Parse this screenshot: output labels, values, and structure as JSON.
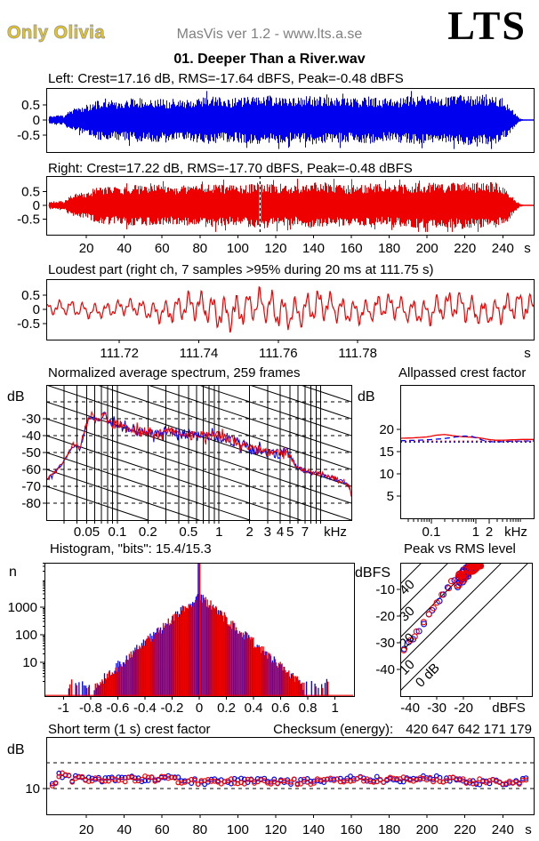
{
  "header": {
    "logo_left": "Only Olivia",
    "app_version": "MasVis ver 1.2 - www.lts.a.se",
    "logo_right": "LTS"
  },
  "title": "01. Deeper Than a River.wav",
  "colors": {
    "left_channel": "#0000EE",
    "right_channel": "#EE0000",
    "grid": "#000000",
    "gray_text": "#808080",
    "logo_gold": "#EDC80A"
  },
  "footer": {
    "checksum_label": "Checksum (energy):",
    "checksum_value": "420 647 642 171 179"
  },
  "chart_data": [
    {
      "id": "left-waveform",
      "type": "area",
      "channel": "left",
      "title": "Left: Crest=17.16 dB, RMS=-17.64 dBFS, Peak=-0.48 dBFS",
      "crest_db": 17.16,
      "rms_dbfs": -17.64,
      "peak_dbfs": -0.48,
      "ylim": [
        -1.05,
        1.05
      ],
      "yticks": [
        0.5,
        0,
        -0.5
      ],
      "xlim": [
        -1.2,
        256.3
      ],
      "grid": false,
      "envelope": [
        [
          0,
          0.13
        ],
        [
          4,
          0.16
        ],
        [
          7,
          0.18
        ],
        [
          8,
          0.1
        ],
        [
          10,
          0.28
        ],
        [
          15,
          0.42
        ],
        [
          20,
          0.5
        ],
        [
          25,
          0.62
        ],
        [
          30,
          0.72
        ],
        [
          35,
          0.65
        ],
        [
          45,
          0.72
        ],
        [
          55,
          0.75
        ],
        [
          65,
          0.68
        ],
        [
          75,
          0.72
        ],
        [
          85,
          0.78
        ],
        [
          95,
          0.72
        ],
        [
          105,
          0.76
        ],
        [
          112,
          0.82
        ],
        [
          120,
          0.78
        ],
        [
          130,
          0.72
        ],
        [
          140,
          0.82
        ],
        [
          150,
          0.76
        ],
        [
          160,
          0.72
        ],
        [
          170,
          0.78
        ],
        [
          180,
          0.7
        ],
        [
          190,
          0.78
        ],
        [
          200,
          0.82
        ],
        [
          210,
          0.78
        ],
        [
          218,
          0.85
        ],
        [
          225,
          0.8
        ],
        [
          232,
          0.85
        ],
        [
          238,
          0.75
        ],
        [
          242,
          0.55
        ],
        [
          245,
          0.35
        ],
        [
          247,
          0.18
        ],
        [
          249,
          0.06
        ],
        [
          251,
          0.02
        ],
        [
          256,
          0.015
        ]
      ]
    },
    {
      "id": "right-waveform",
      "type": "area",
      "channel": "right",
      "title": "Right: Crest=17.22 dB, RMS=-17.70 dBFS, Peak=-0.48 dBFS",
      "crest_db": 17.22,
      "rms_dbfs": -17.7,
      "peak_dbfs": -0.48,
      "ylim": [
        -1.05,
        1.05
      ],
      "yticks": [
        0.5,
        0,
        -0.5
      ],
      "xlim": [
        -1.2,
        256.3
      ],
      "grid": false,
      "xticks": {
        "values": [
          20,
          40,
          60,
          80,
          100,
          120,
          140,
          160,
          180,
          200,
          220,
          240
        ],
        "labels": [
          "20",
          "40",
          "60",
          "80",
          "100",
          "120",
          "140",
          "160",
          "180",
          "200",
          "220",
          "240"
        ]
      },
      "xunit": "s",
      "cursor_time": 111.75,
      "envelope": [
        [
          0,
          0.13
        ],
        [
          4,
          0.17
        ],
        [
          7,
          0.19
        ],
        [
          8,
          0.11
        ],
        [
          10,
          0.29
        ],
        [
          15,
          0.43
        ],
        [
          20,
          0.51
        ],
        [
          25,
          0.63
        ],
        [
          30,
          0.73
        ],
        [
          35,
          0.66
        ],
        [
          45,
          0.73
        ],
        [
          55,
          0.76
        ],
        [
          65,
          0.69
        ],
        [
          75,
          0.73
        ],
        [
          85,
          0.79
        ],
        [
          95,
          0.73
        ],
        [
          105,
          0.77
        ],
        [
          112,
          0.83
        ],
        [
          120,
          0.79
        ],
        [
          130,
          0.73
        ],
        [
          140,
          0.83
        ],
        [
          150,
          0.77
        ],
        [
          160,
          0.73
        ],
        [
          170,
          0.79
        ],
        [
          180,
          0.71
        ],
        [
          190,
          0.79
        ],
        [
          200,
          0.83
        ],
        [
          210,
          0.79
        ],
        [
          218,
          0.86
        ],
        [
          225,
          0.81
        ],
        [
          232,
          0.86
        ],
        [
          238,
          0.76
        ],
        [
          242,
          0.56
        ],
        [
          245,
          0.36
        ],
        [
          247,
          0.18
        ],
        [
          249,
          0.06
        ],
        [
          251,
          0.02
        ],
        [
          256,
          0.015
        ]
      ]
    },
    {
      "id": "loudest-part",
      "type": "line",
      "channel": "right",
      "title": "Loudest part (right ch, 7 samples >95% during 20 ms at 111.75 s)",
      "ylim": [
        -1.05,
        1.05
      ],
      "yticks": [
        0.5,
        0,
        -0.5
      ],
      "xlim": [
        111.7016,
        111.8243
      ],
      "grid": false,
      "xticks": {
        "values": [
          111.72,
          111.74,
          111.76,
          111.78
        ],
        "labels": [
          "111.72",
          "111.74",
          "111.76",
          "111.78"
        ]
      },
      "xunit": "s",
      "envelope01": [
        [
          0,
          0.28
        ],
        [
          0.1,
          0.3
        ],
        [
          0.2,
          0.35
        ],
        [
          0.28,
          0.55
        ],
        [
          0.33,
          0.6
        ],
        [
          0.38,
          0.75
        ],
        [
          0.42,
          0.62
        ],
        [
          0.47,
          0.75
        ],
        [
          0.5,
          0.6
        ],
        [
          0.55,
          0.65
        ],
        [
          0.6,
          0.55
        ],
        [
          0.65,
          0.45
        ],
        [
          0.7,
          0.52
        ],
        [
          0.75,
          0.45
        ],
        [
          0.8,
          0.55
        ],
        [
          0.85,
          0.6
        ],
        [
          0.9,
          0.5
        ],
        [
          0.95,
          0.55
        ],
        [
          1,
          0.6
        ]
      ]
    },
    {
      "id": "spectrum",
      "type": "line",
      "title": "Normalized average spectrum, 259 frames",
      "frames": 259,
      "ylabel": "dB",
      "ylim": [
        -90,
        -10
      ],
      "yticks": [
        -30,
        -40,
        -50,
        -60,
        -70,
        -80
      ],
      "xlog": true,
      "xlim_khz": [
        0.02,
        20
      ],
      "xticks": {
        "values": [
          0.05,
          0.1,
          0.2,
          0.5,
          1,
          2,
          3,
          4,
          5,
          7
        ],
        "labels": [
          "0.05",
          "0.1",
          "0.2",
          "0.5",
          "1",
          "2",
          "3",
          "4",
          "5",
          "7"
        ]
      },
      "xunit": "kHz",
      "grid": true,
      "grid_freqs": [
        0.03,
        0.04,
        0.05,
        0.06,
        0.07,
        0.08,
        0.09,
        0.1,
        0.2,
        0.3,
        0.4,
        0.5,
        0.6,
        0.7,
        0.8,
        0.9,
        1,
        2,
        3,
        4,
        5,
        6,
        7,
        8,
        9,
        10
      ],
      "diagonal_slope_db_per_decade": -20,
      "diagonal_spacing_db": 10,
      "anchors": [
        [
          0.02,
          -66
        ],
        [
          0.024,
          -62
        ],
        [
          0.028,
          -57
        ],
        [
          0.032,
          -52
        ],
        [
          0.036,
          -46
        ],
        [
          0.04,
          -45
        ],
        [
          0.043,
          -48
        ],
        [
          0.047,
          -38
        ],
        [
          0.052,
          -30
        ],
        [
          0.056,
          -27.5
        ],
        [
          0.06,
          -30
        ],
        [
          0.065,
          -32.5
        ],
        [
          0.07,
          -28
        ],
        [
          0.075,
          -26.5
        ],
        [
          0.08,
          -31
        ],
        [
          0.09,
          -33
        ],
        [
          0.1,
          -33.5
        ],
        [
          0.12,
          -35
        ],
        [
          0.15,
          -37.5
        ],
        [
          0.2,
          -38
        ],
        [
          0.25,
          -39.5
        ],
        [
          0.3,
          -36.5
        ],
        [
          0.35,
          -38
        ],
        [
          0.4,
          -38.5
        ],
        [
          0.5,
          -39
        ],
        [
          0.6,
          -40
        ],
        [
          0.7,
          -39.5
        ],
        [
          0.8,
          -40.5
        ],
        [
          1,
          -40.5
        ],
        [
          1.2,
          -41.5
        ],
        [
          1.5,
          -43.5
        ],
        [
          2,
          -46.5
        ],
        [
          2.5,
          -48.5
        ],
        [
          3,
          -49.5
        ],
        [
          3.5,
          -50.5
        ],
        [
          4,
          -51.5
        ],
        [
          4.5,
          -48.5
        ],
        [
          5,
          -52
        ],
        [
          5.5,
          -56
        ],
        [
          6,
          -59
        ],
        [
          7,
          -60.5
        ],
        [
          8,
          -61.5
        ],
        [
          10,
          -62.5
        ],
        [
          12,
          -64
        ],
        [
          15,
          -66
        ],
        [
          17,
          -67
        ],
        [
          19,
          -70
        ],
        [
          20,
          -75
        ]
      ]
    },
    {
      "id": "allpassed-crest",
      "type": "line",
      "title": "Allpassed crest factor",
      "ylabel": "dB",
      "ylim": [
        0,
        30
      ],
      "yticks": [
        20,
        15,
        10,
        5
      ],
      "xlog": true,
      "xlim_khz": [
        0.02,
        20
      ],
      "xticks": {
        "values": [
          0.1,
          1,
          2
        ],
        "labels": [
          "0.1",
          "1",
          "2"
        ]
      },
      "xunit": "kHz",
      "grid": false,
      "series": [
        {
          "name": "right-allpassed",
          "style": "solid",
          "color_key": "right_channel",
          "points": [
            [
              0.02,
              18.0
            ],
            [
              0.04,
              18.1
            ],
            [
              0.08,
              18.3
            ],
            [
              0.13,
              18.7
            ],
            [
              0.2,
              18.85
            ],
            [
              0.3,
              18.6
            ],
            [
              0.5,
              18.35
            ],
            [
              0.8,
              18.25
            ],
            [
              1.2,
              18.1
            ],
            [
              2,
              17.7
            ],
            [
              3,
              17.55
            ],
            [
              5,
              17.6
            ],
            [
              8,
              17.7
            ],
            [
              13,
              17.75
            ],
            [
              20,
              17.75
            ]
          ]
        },
        {
          "name": "left-allpassed",
          "style": "dashed",
          "color_key": "left_channel",
          "points": [
            [
              0.02,
              17.45
            ],
            [
              0.05,
              17.55
            ],
            [
              0.1,
              17.7
            ],
            [
              0.2,
              17.95
            ],
            [
              0.35,
              18.3
            ],
            [
              0.55,
              18.5
            ],
            [
              0.8,
              18.45
            ],
            [
              1.1,
              18.0
            ],
            [
              1.6,
              17.4
            ],
            [
              2.5,
              17.2
            ],
            [
              4,
              17.25
            ],
            [
              7,
              17.35
            ],
            [
              12,
              17.4
            ],
            [
              20,
              17.4
            ]
          ]
        },
        {
          "name": "right-fullband",
          "style": "dotted",
          "color_key": "right_channel",
          "value": 17.35
        },
        {
          "name": "left-fullband",
          "style": "dotted",
          "color_key": "left_channel",
          "value": 17.15
        }
      ]
    },
    {
      "id": "histogram",
      "type": "bar",
      "title": "Histogram, \"bits\": 15.4/15.3",
      "bits_left": 15.4,
      "bits_right": 15.3,
      "ylabel": "n",
      "ylog": true,
      "yticks": [
        10,
        100,
        1000
      ],
      "xlim": [
        -1.14,
        1.14
      ],
      "xticks": {
        "values": [
          -1,
          -0.8,
          -0.6,
          -0.4,
          -0.2,
          0,
          0.2,
          0.4,
          0.6,
          0.8,
          1
        ],
        "labels": [
          "-1",
          "-0.8",
          "-0.6",
          "-0.4",
          "-0.2",
          "0",
          "0.2",
          "0.4",
          "0.6",
          "0.8",
          "1"
        ]
      },
      "peak_log10_count": 3.42,
      "triangle_halfwidth": 0.8,
      "bin_width": 0.0125,
      "center_spike": true,
      "outlier_range": [
        0.78,
        0.96
      ]
    },
    {
      "id": "peak-rms",
      "type": "scatter",
      "title": "Peak vs RMS level",
      "ylabel": "dBFS",
      "xunit": "dBFS",
      "ylim": [
        -50,
        0
      ],
      "yticks": [
        -10,
        -20,
        -30,
        -40
      ],
      "xlim": [
        -43.7,
        5.6
      ],
      "xticks": {
        "values": [
          -40,
          -30,
          -20
        ],
        "labels": [
          "-40",
          "-30",
          "-20"
        ]
      },
      "crest_lines": [
        {
          "c": 40,
          "label": "40"
        },
        {
          "c": 30,
          "label": "30"
        },
        {
          "c": 20,
          "label": "20"
        },
        {
          "c": 10,
          "label": "10"
        },
        {
          "c": 0,
          "label": "0 dB"
        }
      ],
      "cluster": {
        "count": 46,
        "rms_min": -22.5,
        "rms_max": -13.5,
        "crest_min": 13,
        "crest_max": 17.5,
        "peak_clamp": -1.2
      },
      "trail": {
        "count": 11,
        "rms_min": -42.5,
        "rms_max": -24,
        "crest_base": 8.5,
        "crest_rise": 8
      }
    },
    {
      "id": "short-term-crest",
      "type": "scatter",
      "title": "Short term (1 s) crest factor",
      "ylabel": "dB",
      "ylim": [
        0,
        30
      ],
      "yticks": [
        10
      ],
      "dashed_lines": [
        10,
        20
      ],
      "xlim": [
        -1.2,
        256.3
      ],
      "xticks": {
        "values": [
          20,
          40,
          60,
          80,
          100,
          120,
          140,
          160,
          180,
          200,
          220,
          240
        ],
        "labels": [
          "20",
          "40",
          "60",
          "80",
          "100",
          "120",
          "140",
          "160",
          "180",
          "200",
          "220",
          "240"
        ]
      },
      "xunit": "s",
      "profile": {
        "intro_level": 11.3,
        "intro_end_s": 5.5,
        "bump_level": 15.2,
        "bump_end_s": 11,
        "base_level": 13.1,
        "jitter_db": 2.4,
        "step_s": 1.75
      }
    }
  ]
}
